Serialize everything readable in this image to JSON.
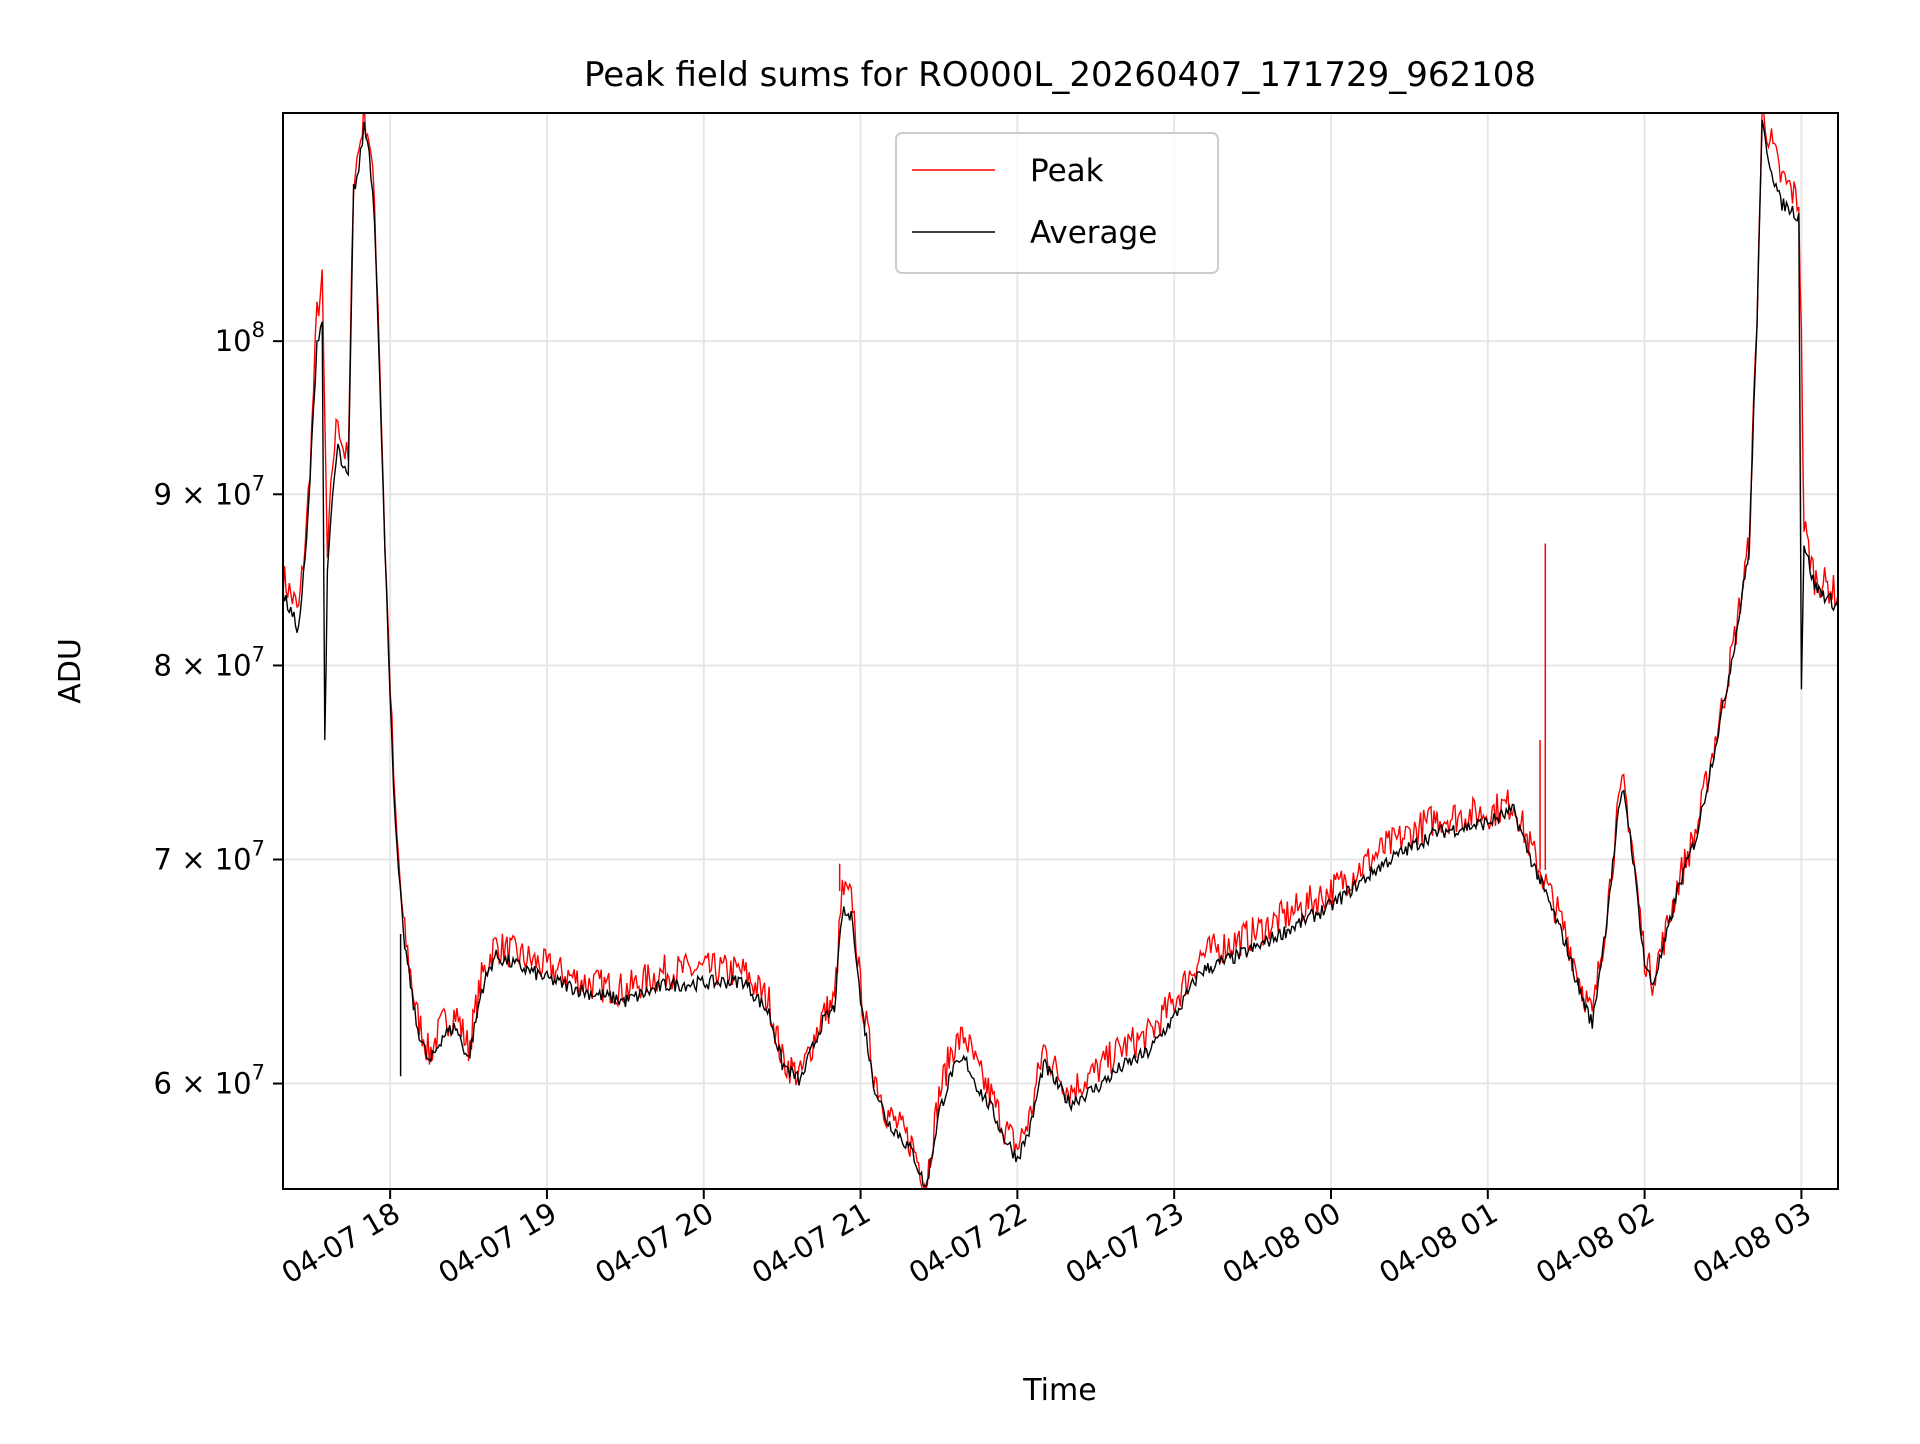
{
  "chart_data": {
    "type": "line",
    "title": "Peak field sums for RO000L_20260407_171729_962108",
    "xlabel": "Time",
    "ylabel": "ADU",
    "xlim": [
      "2026-04-07 17:19",
      "2026-04-08 03:14"
    ],
    "ylim": [
      55800000,
      117000000
    ],
    "yscale": "log",
    "grid": true,
    "legend_position": "top-center",
    "x_ticks": [
      {
        "t": "2026-04-07 18:00",
        "label": "04-07 18"
      },
      {
        "t": "2026-04-07 19:00",
        "label": "04-07 19"
      },
      {
        "t": "2026-04-07 20:00",
        "label": "04-07 20"
      },
      {
        "t": "2026-04-07 21:00",
        "label": "04-07 21"
      },
      {
        "t": "2026-04-07 22:00",
        "label": "04-07 22"
      },
      {
        "t": "2026-04-07 23:00",
        "label": "04-07 23"
      },
      {
        "t": "2026-04-08 00:00",
        "label": "04-08 00"
      },
      {
        "t": "2026-04-08 01:00",
        "label": "04-08 01"
      },
      {
        "t": "2026-04-08 02:00",
        "label": "04-08 02"
      },
      {
        "t": "2026-04-08 03:00",
        "label": "04-08 03"
      }
    ],
    "y_ticks": [
      {
        "value": 60000000,
        "mantissa": "6",
        "exponent": "7"
      },
      {
        "value": 70000000,
        "mantissa": "7",
        "exponent": "7"
      },
      {
        "value": 80000000,
        "mantissa": "8",
        "exponent": "7"
      },
      {
        "value": 90000000,
        "mantissa": "9",
        "exponent": "7"
      },
      {
        "value": 100000000,
        "mantissa": "",
        "exponent": "8"
      }
    ],
    "series": [
      {
        "name": "Peak",
        "color": "#ff0000",
        "points": [
          [
            "2026-04-07 17:19",
            85000000
          ],
          [
            "2026-04-07 17:22",
            84000000
          ],
          [
            "2026-04-07 17:25",
            83000000
          ],
          [
            "2026-04-07 17:28",
            88000000
          ],
          [
            "2026-04-07 17:30",
            94000000
          ],
          [
            "2026-04-07 17:32",
            102000000
          ],
          [
            "2026-04-07 17:34",
            104000000
          ],
          [
            "2026-04-07 17:36",
            86000000
          ],
          [
            "2026-04-07 17:38",
            92000000
          ],
          [
            "2026-04-07 17:40",
            95000000
          ],
          [
            "2026-04-07 17:42",
            93000000
          ],
          [
            "2026-04-07 17:44",
            92000000
          ],
          [
            "2026-04-07 17:46",
            112000000
          ],
          [
            "2026-04-07 17:48",
            114000000
          ],
          [
            "2026-04-07 17:50",
            117000000
          ],
          [
            "2026-04-07 17:52",
            115000000
          ],
          [
            "2026-04-07 17:54",
            110000000
          ],
          [
            "2026-04-07 17:56",
            99000000
          ],
          [
            "2026-04-07 17:58",
            87000000
          ],
          [
            "2026-04-07 18:00",
            79000000
          ],
          [
            "2026-04-07 18:02",
            72000000
          ],
          [
            "2026-04-07 18:05",
            67000000
          ],
          [
            "2026-04-07 18:10",
            63000000
          ],
          [
            "2026-04-07 18:15",
            61200000
          ],
          [
            "2026-04-07 18:20",
            62500000
          ],
          [
            "2026-04-07 18:25",
            63000000
          ],
          [
            "2026-04-07 18:30",
            61500000
          ],
          [
            "2026-04-07 18:35",
            64500000
          ],
          [
            "2026-04-07 18:40",
            66000000
          ],
          [
            "2026-04-07 18:50",
            65500000
          ],
          [
            "2026-04-07 19:00",
            65000000
          ],
          [
            "2026-04-07 19:15",
            64300000
          ],
          [
            "2026-04-07 19:30",
            64000000
          ],
          [
            "2026-04-07 19:45",
            64800000
          ],
          [
            "2026-04-07 20:00",
            64900000
          ],
          [
            "2026-04-07 20:15",
            64800000
          ],
          [
            "2026-04-07 20:25",
            63500000
          ],
          [
            "2026-04-07 20:30",
            61000000
          ],
          [
            "2026-04-07 20:37",
            60300000
          ],
          [
            "2026-04-07 20:45",
            62800000
          ],
          [
            "2026-04-07 20:50",
            63500000
          ],
          [
            "2026-04-07 20:53",
            68500000
          ],
          [
            "2026-04-07 20:57",
            68000000
          ],
          [
            "2026-04-07 21:00",
            64000000
          ],
          [
            "2026-04-07 21:05",
            60500000
          ],
          [
            "2026-04-07 21:10",
            58800000
          ],
          [
            "2026-04-07 21:15",
            58200000
          ],
          [
            "2026-04-07 21:20",
            57500000
          ],
          [
            "2026-04-07 21:25",
            56000000
          ],
          [
            "2026-04-07 21:30",
            59500000
          ],
          [
            "2026-04-07 21:35",
            61500000
          ],
          [
            "2026-04-07 21:40",
            62000000
          ],
          [
            "2026-04-07 21:45",
            60500000
          ],
          [
            "2026-04-07 21:50",
            59500000
          ],
          [
            "2026-04-07 21:55",
            58200000
          ],
          [
            "2026-04-07 22:00",
            57400000
          ],
          [
            "2026-04-07 22:05",
            58700000
          ],
          [
            "2026-04-07 22:10",
            61500000
          ],
          [
            "2026-04-07 22:15",
            60500000
          ],
          [
            "2026-04-07 22:20",
            59700000
          ],
          [
            "2026-04-07 22:30",
            60500000
          ],
          [
            "2026-04-07 22:40",
            61500000
          ],
          [
            "2026-04-07 22:50",
            62000000
          ],
          [
            "2026-04-07 23:00",
            63500000
          ],
          [
            "2026-04-07 23:10",
            65500000
          ],
          [
            "2026-04-07 23:30",
            66500000
          ],
          [
            "2026-04-08 00:00",
            68500000
          ],
          [
            "2026-04-08 00:20",
            70500000
          ],
          [
            "2026-04-08 00:40",
            72000000
          ],
          [
            "2026-04-08 01:00",
            72300000
          ],
          [
            "2026-04-08 01:10",
            72800000
          ],
          [
            "2026-04-08 01:15",
            71000000
          ],
          [
            "2026-04-08 01:20",
            69500000
          ],
          [
            "2026-04-08 01:25",
            68000000
          ],
          [
            "2026-04-08 01:30",
            66500000
          ],
          [
            "2026-04-08 01:35",
            64500000
          ],
          [
            "2026-04-08 01:40",
            62800000
          ],
          [
            "2026-04-08 01:45",
            67000000
          ],
          [
            "2026-04-08 01:50",
            72500000
          ],
          [
            "2026-04-08 01:52",
            73800000
          ],
          [
            "2026-04-08 01:55",
            71000000
          ],
          [
            "2026-04-08 02:00",
            65500000
          ],
          [
            "2026-04-08 02:03",
            64500000
          ],
          [
            "2026-04-08 02:08",
            66500000
          ],
          [
            "2026-04-08 02:13",
            69000000
          ],
          [
            "2026-04-08 02:20",
            71500000
          ],
          [
            "2026-04-08 02:30",
            78000000
          ],
          [
            "2026-04-08 02:35",
            82000000
          ],
          [
            "2026-04-08 02:40",
            87000000
          ],
          [
            "2026-04-08 02:43",
            102000000
          ],
          [
            "2026-04-08 02:45",
            117000000
          ],
          [
            "2026-04-08 02:48",
            115000000
          ],
          [
            "2026-04-08 02:52",
            112000000
          ],
          [
            "2026-04-08 02:56",
            111000000
          ],
          [
            "2026-04-08 02:59",
            110000000
          ],
          [
            "2026-04-08 03:00",
            100000000
          ],
          [
            "2026-04-08 03:01",
            88000000
          ],
          [
            "2026-04-08 03:05",
            85000000
          ],
          [
            "2026-04-08 03:10",
            84500000
          ],
          [
            "2026-04-08 03:14",
            84000000
          ]
        ]
      },
      {
        "name": "Average",
        "color": "#000000",
        "points": [
          [
            "2026-04-07 17:19",
            84000000
          ],
          [
            "2026-04-07 17:22",
            83000000
          ],
          [
            "2026-04-07 17:25",
            82000000
          ],
          [
            "2026-04-07 17:28",
            87000000
          ],
          [
            "2026-04-07 17:30",
            93000000
          ],
          [
            "2026-04-07 17:32",
            100000000
          ],
          [
            "2026-04-07 17:34",
            101500000
          ],
          [
            "2026-04-07 17:35",
            76000000
          ],
          [
            "2026-04-07 17:36",
            85000000
          ],
          [
            "2026-04-07 17:38",
            90000000
          ],
          [
            "2026-04-07 17:40",
            93000000
          ],
          [
            "2026-04-07 17:42",
            91500000
          ],
          [
            "2026-04-07 17:44",
            91000000
          ],
          [
            "2026-04-07 17:46",
            111000000
          ],
          [
            "2026-04-07 17:48",
            112500000
          ],
          [
            "2026-04-07 17:50",
            116000000
          ],
          [
            "2026-04-07 17:52",
            114000000
          ],
          [
            "2026-04-07 17:54",
            109000000
          ],
          [
            "2026-04-07 17:56",
            98000000
          ],
          [
            "2026-04-07 17:58",
            86500000
          ],
          [
            "2026-04-07 18:00",
            78500000
          ],
          [
            "2026-04-07 18:02",
            71500000
          ],
          [
            "2026-04-07 18:05",
            66500000
          ],
          [
            "2026-04-07 18:10",
            62500000
          ],
          [
            "2026-04-07 18:15",
            60800000
          ],
          [
            "2026-04-07 18:20",
            62000000
          ],
          [
            "2026-04-07 18:25",
            62400000
          ],
          [
            "2026-04-07 18:30",
            61000000
          ],
          [
            "2026-04-07 18:35",
            64000000
          ],
          [
            "2026-04-07 18:40",
            65500000
          ],
          [
            "2026-04-07 18:50",
            65000000
          ],
          [
            "2026-04-07 19:00",
            64500000
          ],
          [
            "2026-04-07 19:15",
            63900000
          ],
          [
            "2026-04-07 19:30",
            63500000
          ],
          [
            "2026-04-07 19:45",
            64200000
          ],
          [
            "2026-04-07 20:00",
            64300000
          ],
          [
            "2026-04-07 20:15",
            64400000
          ],
          [
            "2026-04-07 20:25",
            63000000
          ],
          [
            "2026-04-07 20:30",
            60800000
          ],
          [
            "2026-04-07 20:37",
            60100000
          ],
          [
            "2026-04-07 20:45",
            62500000
          ],
          [
            "2026-04-07 20:50",
            63200000
          ],
          [
            "2026-04-07 20:53",
            67500000
          ],
          [
            "2026-04-07 20:57",
            67200000
          ],
          [
            "2026-04-07 21:00",
            63500000
          ],
          [
            "2026-04-07 21:05",
            60000000
          ],
          [
            "2026-04-07 21:10",
            58500000
          ],
          [
            "2026-04-07 21:15",
            57900000
          ],
          [
            "2026-04-07 21:20",
            57200000
          ],
          [
            "2026-04-07 21:25",
            55800000
          ],
          [
            "2026-04-07 21:30",
            58800000
          ],
          [
            "2026-04-07 21:35",
            60500000
          ],
          [
            "2026-04-07 21:40",
            61000000
          ],
          [
            "2026-04-07 21:45",
            59800000
          ],
          [
            "2026-04-07 21:50",
            59000000
          ],
          [
            "2026-04-07 21:55",
            57800000
          ],
          [
            "2026-04-07 22:00",
            57000000
          ],
          [
            "2026-04-07 22:05",
            58200000
          ],
          [
            "2026-04-07 22:10",
            60800000
          ],
          [
            "2026-04-07 22:15",
            60000000
          ],
          [
            "2026-04-07 22:20",
            59200000
          ],
          [
            "2026-04-07 22:30",
            59800000
          ],
          [
            "2026-04-07 22:40",
            60700000
          ],
          [
            "2026-04-07 22:50",
            61300000
          ],
          [
            "2026-04-07 23:00",
            62800000
          ],
          [
            "2026-04-07 23:10",
            64800000
          ],
          [
            "2026-04-07 23:30",
            65800000
          ],
          [
            "2026-04-08 00:00",
            67800000
          ],
          [
            "2026-04-08 00:20",
            69800000
          ],
          [
            "2026-04-08 00:40",
            71300000
          ],
          [
            "2026-04-08 01:00",
            71800000
          ],
          [
            "2026-04-08 01:10",
            72400000
          ],
          [
            "2026-04-08 01:15",
            70500000
          ],
          [
            "2026-04-08 01:20",
            69000000
          ],
          [
            "2026-04-08 01:25",
            67500000
          ],
          [
            "2026-04-08 01:30",
            66000000
          ],
          [
            "2026-04-08 01:35",
            64000000
          ],
          [
            "2026-04-08 01:40",
            62500000
          ],
          [
            "2026-04-08 01:45",
            66700000
          ],
          [
            "2026-04-08 01:50",
            72200000
          ],
          [
            "2026-04-08 01:52",
            73500000
          ],
          [
            "2026-04-08 01:55",
            70700000
          ],
          [
            "2026-04-08 02:00",
            65200000
          ],
          [
            "2026-04-08 02:03",
            64200000
          ],
          [
            "2026-04-08 02:08",
            66200000
          ],
          [
            "2026-04-08 02:13",
            68700000
          ],
          [
            "2026-04-08 02:20",
            71200000
          ],
          [
            "2026-04-08 02:30",
            77700000
          ],
          [
            "2026-04-08 02:35",
            81700000
          ],
          [
            "2026-04-08 02:40",
            86700000
          ],
          [
            "2026-04-08 02:43",
            101500000
          ],
          [
            "2026-04-08 02:45",
            116000000
          ],
          [
            "2026-04-08 02:48",
            113000000
          ],
          [
            "2026-04-08 02:52",
            110000000
          ],
          [
            "2026-04-08 02:56",
            109500000
          ],
          [
            "2026-04-08 02:59",
            109000000
          ],
          [
            "2026-04-08 03:00",
            79000000
          ],
          [
            "2026-04-08 03:01",
            87000000
          ],
          [
            "2026-04-08 03:05",
            84500000
          ],
          [
            "2026-04-08 03:10",
            83800000
          ],
          [
            "2026-04-08 03:14",
            83300000
          ]
        ]
      }
    ],
    "annotations": [
      {
        "series": "Peak",
        "at": "2026-04-08 01:22",
        "value": 87000000,
        "kind": "spike"
      },
      {
        "series": "Peak",
        "at": "2026-04-08 01:20",
        "value": 76000000,
        "kind": "spike"
      },
      {
        "series": "Peak",
        "at": "2026-04-07 20:52",
        "value": 69800000,
        "kind": "spike"
      },
      {
        "series": "Average",
        "at": "2026-04-07 18:04",
        "value": 60300000,
        "kind": "dip"
      }
    ]
  }
}
